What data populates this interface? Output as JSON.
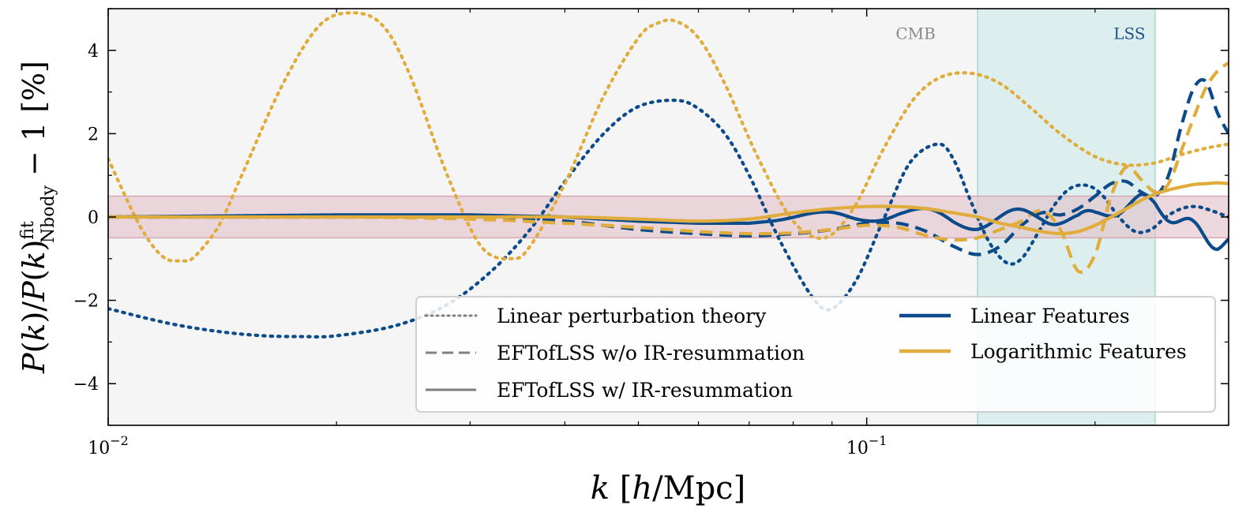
{
  "chart_data": {
    "type": "line",
    "xscale": "log",
    "xlim": [
      0.01,
      0.3
    ],
    "ylim": [
      -5,
      5
    ],
    "xlabel": "k [h/Mpc]",
    "ylabel": "P(k)/P(k)fitNbody − 1 [%]",
    "xticks": [
      {
        "value": 0.01,
        "base": "10",
        "exp": "−2"
      },
      {
        "value": 0.1,
        "base": "10",
        "exp": "−1"
      }
    ],
    "yticks": [
      {
        "value": -4,
        "label": "−4"
      },
      {
        "value": -2,
        "label": "−2"
      },
      {
        "value": 0,
        "label": "0"
      },
      {
        "value": 2,
        "label": "2"
      },
      {
        "value": 4,
        "label": "4"
      }
    ],
    "band": {
      "ymin": -0.5,
      "ymax": 0.5,
      "color": "#e2c3cb"
    },
    "regions": [
      {
        "name": "CMB",
        "xmin": 0.01,
        "xmax": 0.14,
        "color": "#f5f5f5",
        "label_color": "#8a8a8a",
        "label_x": 0.116,
        "label_y": 4.4
      },
      {
        "name": "LSS",
        "xmin": 0.14,
        "xmax": 0.24,
        "color": "#dcefee",
        "label_color": "#1f4f8f",
        "label_x": 0.222,
        "label_y": 4.4
      }
    ],
    "colors": {
      "linear": "#0b4a8b",
      "log": "#e0ad3c",
      "legend_grey": "#808080"
    },
    "legend": {
      "styles": [
        {
          "label": "Linear perturbation theory",
          "style": "dotted"
        },
        {
          "label": "EFTofLSS w/o IR-resummation",
          "style": "dashed"
        },
        {
          "label": "EFTofLSS w/ IR-resummation",
          "style": "solid"
        }
      ],
      "models": [
        {
          "label": "Linear Features",
          "color": "#0b4a8b"
        },
        {
          "label": "Logarithmic Features",
          "color": "#e0ad3c"
        }
      ]
    },
    "series": [
      {
        "name": "Linear Features – Linear perturbation theory",
        "color": "#0b4a8b",
        "style": "dotted",
        "x": [
          0.01,
          0.012,
          0.014,
          0.016,
          0.018,
          0.02,
          0.024,
          0.028,
          0.032,
          0.036,
          0.04,
          0.045,
          0.05,
          0.056,
          0.06,
          0.065,
          0.07,
          0.077,
          0.085,
          0.09,
          0.097,
          0.105,
          0.114,
          0.124,
          0.13,
          0.137,
          0.145,
          0.153,
          0.16,
          0.168,
          0.177,
          0.186,
          0.196,
          0.205,
          0.215,
          0.226,
          0.237,
          0.248,
          0.26,
          0.272,
          0.285,
          0.3
        ],
        "values": [
          -2.2,
          -2.55,
          -2.75,
          -2.85,
          -2.87,
          -2.85,
          -2.6,
          -2.1,
          -1.3,
          -0.3,
          0.85,
          2.0,
          2.65,
          2.8,
          2.6,
          2.0,
          1.0,
          -0.6,
          -1.95,
          -2.2,
          -1.5,
          -0.1,
          1.3,
          1.75,
          1.4,
          0.4,
          -0.6,
          -1.1,
          -1.0,
          -0.4,
          0.3,
          0.7,
          0.75,
          0.5,
          0.0,
          -0.35,
          -0.3,
          0.0,
          0.2,
          0.25,
          0.15,
          0.0
        ]
      },
      {
        "name": "Logarithmic Features – Linear perturbation theory",
        "color": "#e0ad3c",
        "style": "dotted",
        "x": [
          0.01,
          0.011,
          0.0118,
          0.0125,
          0.013,
          0.014,
          0.015,
          0.017,
          0.019,
          0.021,
          0.023,
          0.025,
          0.028,
          0.031,
          0.034,
          0.036,
          0.04,
          0.045,
          0.05,
          0.053,
          0.056,
          0.06,
          0.065,
          0.072,
          0.08,
          0.088,
          0.096,
          0.105,
          0.115,
          0.125,
          0.137,
          0.15,
          0.165,
          0.18,
          0.2,
          0.22,
          0.24,
          0.26,
          0.28,
          0.3
        ],
        "values": [
          1.4,
          -0.2,
          -0.95,
          -1.05,
          -0.95,
          -0.2,
          1.0,
          3.2,
          4.6,
          4.9,
          4.6,
          3.4,
          1.0,
          -0.7,
          -1.0,
          -0.7,
          0.8,
          2.9,
          4.3,
          4.65,
          4.7,
          4.3,
          3.2,
          1.4,
          -0.1,
          -0.5,
          0.2,
          1.6,
          2.8,
          3.35,
          3.45,
          3.2,
          2.6,
          2.0,
          1.45,
          1.25,
          1.3,
          1.5,
          1.65,
          1.75
        ]
      },
      {
        "name": "Linear Features – EFTofLSS w/o IR-resummation",
        "color": "#0b4a8b",
        "style": "dashed",
        "x": [
          0.01,
          0.02,
          0.03,
          0.04,
          0.05,
          0.06,
          0.07,
          0.08,
          0.09,
          0.1,
          0.11,
          0.12,
          0.13,
          0.14,
          0.15,
          0.16,
          0.17,
          0.18,
          0.19,
          0.2,
          0.21,
          0.22,
          0.23,
          0.24,
          0.25,
          0.26,
          0.27,
          0.28,
          0.29,
          0.3
        ],
        "values": [
          0.0,
          0.0,
          0.0,
          -0.1,
          -0.3,
          -0.4,
          -0.45,
          -0.4,
          -0.3,
          -0.15,
          -0.15,
          -0.35,
          -0.7,
          -0.9,
          -0.7,
          -0.2,
          0.1,
          0.05,
          0.2,
          0.5,
          0.8,
          0.85,
          0.6,
          0.5,
          1.0,
          2.2,
          3.1,
          3.25,
          2.5,
          2.0
        ]
      },
      {
        "name": "Logarithmic Features – EFTofLSS w/o IR-resummation",
        "color": "#e0ad3c",
        "style": "dashed",
        "x": [
          0.01,
          0.02,
          0.03,
          0.04,
          0.05,
          0.06,
          0.07,
          0.08,
          0.09,
          0.1,
          0.11,
          0.12,
          0.13,
          0.14,
          0.15,
          0.16,
          0.17,
          0.18,
          0.19,
          0.2,
          0.21,
          0.22,
          0.23,
          0.24,
          0.25,
          0.26,
          0.27,
          0.28,
          0.29,
          0.3
        ],
        "values": [
          0.0,
          0.0,
          -0.05,
          -0.15,
          -0.25,
          -0.35,
          -0.4,
          -0.38,
          -0.3,
          -0.2,
          -0.25,
          -0.45,
          -0.55,
          -0.5,
          -0.3,
          -0.1,
          0.15,
          -0.3,
          -1.3,
          -0.9,
          0.5,
          1.2,
          0.9,
          0.6,
          0.8,
          1.6,
          2.4,
          3.1,
          3.5,
          3.7
        ]
      },
      {
        "name": "Linear Features – EFTofLSS w/ IR-resummation",
        "color": "#0b4a8b",
        "style": "solid",
        "oscillation": {
          "amplitude": 0.2,
          "frequency": 27,
          "x_start": 0.075
        },
        "x": [
          0.01,
          0.02,
          0.03,
          0.04,
          0.05,
          0.06,
          0.07,
          0.08,
          0.09,
          0.1,
          0.11,
          0.12,
          0.13,
          0.14,
          0.15,
          0.16,
          0.17,
          0.18,
          0.19,
          0.2,
          0.21,
          0.22,
          0.23,
          0.24,
          0.25,
          0.26,
          0.27,
          0.28,
          0.29,
          0.3
        ],
        "values": [
          0.0,
          0.05,
          0.05,
          0.0,
          -0.1,
          -0.15,
          -0.15,
          -0.05,
          0.05,
          0.1,
          0.1,
          0.0,
          -0.1,
          -0.1,
          -0.05,
          0.0,
          0.05,
          0.0,
          -0.1,
          0.0,
          0.2,
          0.3,
          0.35,
          0.3,
          0.1,
          -0.1,
          -0.3,
          -0.45,
          -0.6,
          -0.65
        ]
      },
      {
        "name": "Logarithmic Features – EFTofLSS w/ IR-resummation",
        "color": "#e0ad3c",
        "style": "solid",
        "x": [
          0.01,
          0.02,
          0.03,
          0.04,
          0.05,
          0.06,
          0.07,
          0.08,
          0.09,
          0.1,
          0.11,
          0.12,
          0.13,
          0.14,
          0.15,
          0.16,
          0.17,
          0.18,
          0.19,
          0.2,
          0.21,
          0.22,
          0.23,
          0.24,
          0.25,
          0.26,
          0.27,
          0.28,
          0.29,
          0.3
        ],
        "values": [
          0.0,
          0.0,
          0.0,
          0.0,
          -0.05,
          -0.1,
          -0.05,
          0.1,
          0.2,
          0.25,
          0.25,
          0.2,
          0.1,
          0.0,
          -0.15,
          -0.25,
          -0.35,
          -0.4,
          -0.35,
          -0.2,
          0.0,
          0.2,
          0.4,
          0.55,
          0.65,
          0.72,
          0.78,
          0.8,
          0.82,
          0.8
        ]
      }
    ]
  }
}
